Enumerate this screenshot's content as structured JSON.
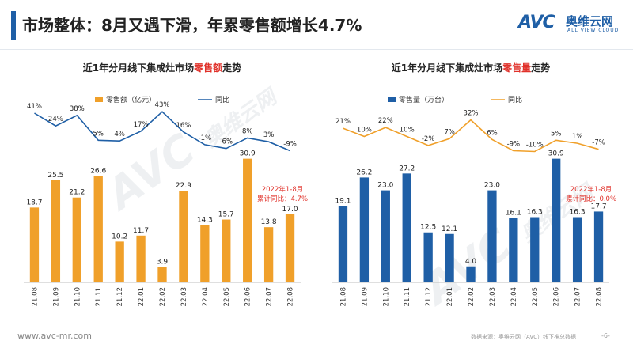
{
  "header": {
    "title": "市场整体：8月又遇下滑，年累零售额增长4.7%",
    "logo_text": "AVC",
    "logo_cn": "奥维云网",
    "logo_en": "ALL VIEW CLOUD",
    "accent_color": "#1f5fa6"
  },
  "watermark": {
    "text": "AVC",
    "cn": "奥维云网",
    "en": "ALL VIEW CLOUD"
  },
  "footer": {
    "url": "www.avc-mr.com",
    "source": "数据来源：奥维云网（AVC）线下推总数据",
    "page": "-6-"
  },
  "chart_data": [
    {
      "type": "bar",
      "title_prefix": "近1年分月线下集成灶市场",
      "title_highlight": "零售额",
      "title_suffix": "走势",
      "categories": [
        "21.08",
        "21.09",
        "21.10",
        "21.11",
        "21.12",
        "22.01",
        "22.02",
        "22.03",
        "22.04",
        "22.05",
        "22.06",
        "22.07",
        "22.08"
      ],
      "series": [
        {
          "name": "零售额（亿元）",
          "type": "bar",
          "color": "#f0a02a",
          "values": [
            18.7,
            25.5,
            21.2,
            26.6,
            10.2,
            11.7,
            3.9,
            22.9,
            14.3,
            15.7,
            30.9,
            13.8,
            17.0
          ],
          "labels": [
            "18.7",
            "25.5",
            "21.2",
            "26.6",
            "10.2",
            "11.7",
            "3.9",
            "22.9",
            "14.3",
            "15.7",
            "30.9",
            "13.8",
            "17.0"
          ]
        },
        {
          "name": "同比",
          "type": "line",
          "color": "#1f5fa6",
          "values": [
            41,
            24,
            38,
            5,
            4,
            17,
            43,
            16,
            -1,
            -6,
            8,
            3,
            -9
          ],
          "labels": [
            "41%",
            "24%",
            "38%",
            "5%",
            "4%",
            "17%",
            "43%",
            "16%",
            "-1%",
            "-6%",
            "8%",
            "3%",
            "-9%"
          ]
        }
      ],
      "annotation": {
        "line1": "2022年1-8月",
        "line2": "累计同比：4.7%",
        "color": "#e0312a"
      },
      "ylim": [
        0,
        33
      ],
      "line_ylim": [
        -40,
        60
      ]
    },
    {
      "type": "bar",
      "title_prefix": "近1年分月线下集成灶市场",
      "title_highlight": "零售量",
      "title_suffix": "走势",
      "categories": [
        "21.08",
        "21.09",
        "21.10",
        "21.11",
        "21.12",
        "22.01",
        "22.02",
        "22.03",
        "22.04",
        "22.05",
        "22.06",
        "22.07",
        "22.08"
      ],
      "series": [
        {
          "name": "零售量（万台）",
          "type": "bar",
          "color": "#1f5fa6",
          "values": [
            19.1,
            26.2,
            23.0,
            27.2,
            12.5,
            12.1,
            4.0,
            23.0,
            16.1,
            16.3,
            30.9,
            16.3,
            17.7
          ],
          "labels": [
            "19.1",
            "26.2",
            "23.0",
            "27.2",
            "12.5",
            "12.1",
            "4.0",
            "23.0",
            "16.1",
            "16.3",
            "30.9",
            "16.3",
            "17.7"
          ]
        },
        {
          "name": "同比",
          "type": "line",
          "color": "#f0a02a",
          "values": [
            21,
            10,
            22,
            10,
            -2,
            7,
            32,
            6,
            -9,
            -10,
            5,
            1,
            -7
          ],
          "labels": [
            "21%",
            "10%",
            "22%",
            "10%",
            "-2%",
            "7%",
            "32%",
            "6%",
            "-9%",
            "-10%",
            "5%",
            "1%",
            "-7%"
          ]
        }
      ],
      "annotation": {
        "line1": "2022年1-8月",
        "line2": "累计同比：0.0%",
        "color": "#e0312a"
      },
      "ylim": [
        0,
        33
      ],
      "line_ylim": [
        -40,
        60
      ]
    }
  ]
}
